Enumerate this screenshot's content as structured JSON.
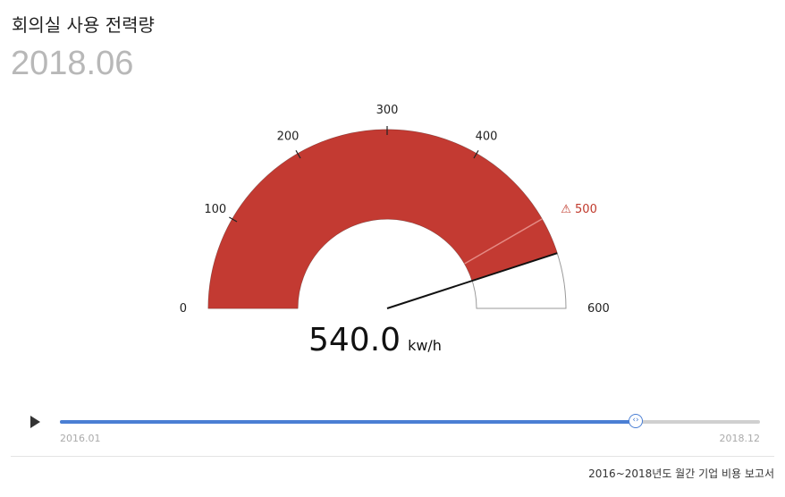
{
  "header": {
    "title": "회의실 사용 전력량",
    "period": "2018.06"
  },
  "chart_data": {
    "type": "gauge",
    "title": "회의실 사용 전력량",
    "min": 0,
    "max": 600,
    "value": 540,
    "value_display": "540.0",
    "unit": "kw/h",
    "ticks": [
      0,
      100,
      200,
      300,
      400,
      500,
      600
    ],
    "threshold": 500,
    "threshold_label": "500",
    "threshold_icon": "warning-icon",
    "colors": {
      "fill": "#c33a32",
      "track_border": "#9a9a9a",
      "needle": "#111111",
      "warning": "#c0392b"
    }
  },
  "timeline": {
    "start_label": "2016.01",
    "end_label": "2018.12",
    "progress": 0.8225,
    "handle_icon": "chevron-left-right-icon",
    "play_icon": "play-icon",
    "colors": {
      "fill": "#4a7fd4",
      "track": "#d0d0d0"
    }
  },
  "footer": {
    "source": "2016~2018년도 월간 기업 비용 보고서"
  }
}
